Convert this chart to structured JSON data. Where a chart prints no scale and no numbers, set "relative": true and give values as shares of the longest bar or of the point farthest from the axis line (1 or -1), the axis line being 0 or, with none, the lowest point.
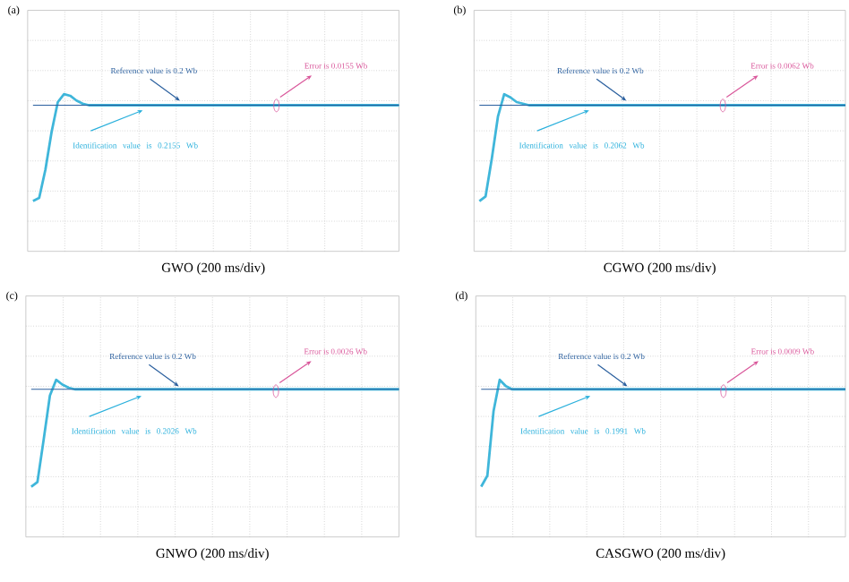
{
  "chart_data": [
    {
      "type": "line",
      "title": "(a)",
      "xlabel": "GWO (200 ms/div)",
      "relative": true,
      "grid": true,
      "categories": [
        null,
        null,
        null,
        null,
        null,
        null,
        null,
        null,
        null,
        null,
        null,
        null,
        null,
        null,
        null,
        null,
        null,
        null,
        null,
        null,
        null,
        null,
        null,
        null,
        null,
        null,
        null,
        null,
        null,
        null,
        null,
        null,
        null,
        null,
        null,
        null,
        null,
        null,
        null,
        null,
        null,
        null,
        null,
        null,
        null,
        null,
        null,
        null,
        null,
        null,
        null,
        null,
        null,
        null,
        null,
        null,
        null,
        null,
        null,
        null
      ],
      "series": [
        {
          "color": "#3fb6da",
          "values": [
            0.32,
            0.34,
            0.52,
            0.76,
            0.95,
            1.0,
            0.99,
            0.96,
            0.94,
            0.93,
            0.93,
            0.93,
            0.93,
            0.93,
            0.93,
            0.93,
            0.93,
            0.93,
            0.93,
            0.93,
            0.93,
            0.93,
            0.93,
            0.93,
            0.93,
            0.93,
            0.93,
            0.93,
            0.93,
            0.93,
            0.93,
            0.93,
            0.93,
            0.93,
            0.93,
            0.93,
            0.93,
            0.93,
            0.93,
            0.93,
            0.93,
            0.93,
            0.93,
            0.93,
            0.93,
            0.93,
            0.93,
            0.93,
            0.93,
            0.93,
            0.93,
            0.93,
            0.93,
            0.93,
            0.93,
            0.93,
            0.93,
            0.93,
            0.93,
            0.93
          ]
        }
      ],
      "ref_lines": [
        {
          "axis": "y",
          "value": 0.93,
          "label": "Reference value is 0.2 Wb",
          "color": "#2a5f9e"
        }
      ],
      "annotations": [
        "Identification value is 0.2155 Wb",
        "Error is 0.0155 Wb"
      ]
    },
    {
      "type": "line",
      "title": "(b)",
      "xlabel": "CGWO (200 ms/div)",
      "relative": true,
      "grid": true,
      "categories": [
        null,
        null,
        null,
        null,
        null,
        null,
        null,
        null,
        null,
        null,
        null,
        null,
        null,
        null,
        null,
        null,
        null,
        null,
        null,
        null,
        null,
        null,
        null,
        null,
        null,
        null,
        null,
        null,
        null,
        null,
        null,
        null,
        null,
        null,
        null,
        null,
        null,
        null,
        null,
        null,
        null,
        null,
        null,
        null,
        null,
        null,
        null,
        null,
        null,
        null,
        null,
        null,
        null,
        null,
        null,
        null,
        null,
        null,
        null,
        null
      ],
      "series": [
        {
          "color": "#3fb6da",
          "values": [
            0.32,
            0.35,
            0.59,
            0.86,
            1.0,
            0.98,
            0.95,
            0.94,
            0.93,
            0.93,
            0.93,
            0.93,
            0.93,
            0.93,
            0.93,
            0.93,
            0.93,
            0.93,
            0.93,
            0.93,
            0.93,
            0.93,
            0.93,
            0.93,
            0.93,
            0.93,
            0.93,
            0.93,
            0.93,
            0.93,
            0.93,
            0.93,
            0.93,
            0.93,
            0.93,
            0.93,
            0.93,
            0.93,
            0.93,
            0.93,
            0.93,
            0.93,
            0.93,
            0.93,
            0.93,
            0.93,
            0.93,
            0.93,
            0.93,
            0.93,
            0.93,
            0.93,
            0.93,
            0.93,
            0.93,
            0.93,
            0.93,
            0.93,
            0.93,
            0.93
          ]
        }
      ],
      "ref_lines": [
        {
          "axis": "y",
          "value": 0.93,
          "label": "Reference value is 0.2 Wb",
          "color": "#2a5f9e"
        }
      ],
      "annotations": [
        "Identification value is 0.2062 Wb",
        "Error is 0.0062 Wb"
      ]
    },
    {
      "type": "line",
      "title": "(c)",
      "xlabel": "GNWO (200 ms/div)",
      "relative": true,
      "grid": true,
      "categories": [
        null,
        null,
        null,
        null,
        null,
        null,
        null,
        null,
        null,
        null,
        null,
        null,
        null,
        null,
        null,
        null,
        null,
        null,
        null,
        null,
        null,
        null,
        null,
        null,
        null,
        null,
        null,
        null,
        null,
        null,
        null,
        null,
        null,
        null,
        null,
        null,
        null,
        null,
        null,
        null,
        null,
        null,
        null,
        null,
        null,
        null,
        null,
        null,
        null,
        null,
        null,
        null,
        null,
        null,
        null,
        null,
        null,
        null,
        null,
        null
      ],
      "series": [
        {
          "color": "#3fb6da",
          "values": [
            0.32,
            0.35,
            0.62,
            0.9,
            1.0,
            0.97,
            0.95,
            0.94,
            0.94,
            0.94,
            0.94,
            0.94,
            0.94,
            0.94,
            0.94,
            0.94,
            0.94,
            0.94,
            0.94,
            0.94,
            0.94,
            0.94,
            0.94,
            0.94,
            0.94,
            0.94,
            0.94,
            0.94,
            0.94,
            0.94,
            0.94,
            0.94,
            0.94,
            0.94,
            0.94,
            0.94,
            0.94,
            0.94,
            0.94,
            0.94,
            0.94,
            0.94,
            0.94,
            0.94,
            0.94,
            0.94,
            0.94,
            0.94,
            0.94,
            0.94,
            0.94,
            0.94,
            0.94,
            0.94,
            0.94,
            0.94,
            0.94,
            0.94,
            0.94,
            0.94
          ]
        }
      ],
      "ref_lines": [
        {
          "axis": "y",
          "value": 0.94,
          "label": "Reference value is 0.2 Wb",
          "color": "#2a5f9e"
        }
      ],
      "annotations": [
        "Identification value is 0.2026 Wb",
        "Error is 0.0026 Wb"
      ]
    },
    {
      "type": "line",
      "title": "(d)",
      "xlabel": "CASGWO (200 ms/div)",
      "relative": true,
      "grid": true,
      "categories": [
        null,
        null,
        null,
        null,
        null,
        null,
        null,
        null,
        null,
        null,
        null,
        null,
        null,
        null,
        null,
        null,
        null,
        null,
        null,
        null,
        null,
        null,
        null,
        null,
        null,
        null,
        null,
        null,
        null,
        null,
        null,
        null,
        null,
        null,
        null,
        null,
        null,
        null,
        null,
        null,
        null,
        null,
        null,
        null,
        null,
        null,
        null,
        null,
        null,
        null,
        null,
        null,
        null,
        null,
        null,
        null,
        null,
        null,
        null,
        null
      ],
      "series": [
        {
          "color": "#3fb6da",
          "values": [
            0.32,
            0.39,
            0.8,
            1.0,
            0.96,
            0.94,
            0.94,
            0.94,
            0.94,
            0.94,
            0.94,
            0.94,
            0.94,
            0.94,
            0.94,
            0.94,
            0.94,
            0.94,
            0.94,
            0.94,
            0.94,
            0.94,
            0.94,
            0.94,
            0.94,
            0.94,
            0.94,
            0.94,
            0.94,
            0.94,
            0.94,
            0.94,
            0.94,
            0.94,
            0.94,
            0.94,
            0.94,
            0.94,
            0.94,
            0.94,
            0.94,
            0.94,
            0.94,
            0.94,
            0.94,
            0.94,
            0.94,
            0.94,
            0.94,
            0.94,
            0.94,
            0.94,
            0.94,
            0.94,
            0.94,
            0.94,
            0.94,
            0.94,
            0.94,
            0.94
          ]
        }
      ],
      "ref_lines": [
        {
          "axis": "y",
          "value": 0.94,
          "label": "Reference value is 0.2 Wb",
          "color": "#2a5f9e"
        }
      ],
      "annotations": [
        "Identification value is 0.1991 Wb",
        "Error is 0.0009 Wb"
      ]
    }
  ]
}
